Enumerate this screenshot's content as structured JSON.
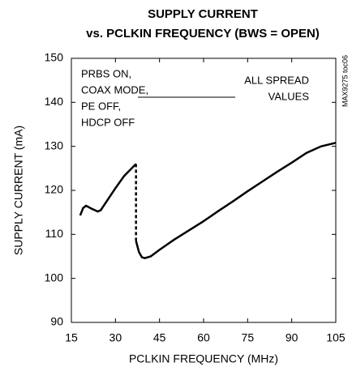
{
  "chart_data": {
    "type": "line",
    "title": [
      "SUPPLY CURRENT",
      "vs. PCLKIN FREQUENCY (BWS = OPEN)"
    ],
    "xlabel": "PCLKIN FREQUENCY (MHz)",
    "ylabel": "SUPPLY CURRENT (mA)",
    "side_note": "MAX9275 toc06",
    "annotations": {
      "left": [
        "PRBS ON,",
        "COAX MODE,",
        "PE OFF,",
        "HDCP OFF"
      ],
      "right": [
        "ALL SPREAD",
        "VALUES"
      ]
    },
    "xlim": [
      15,
      105
    ],
    "xticks": [
      15,
      30,
      45,
      60,
      75,
      90,
      105
    ],
    "ylim": [
      90,
      150
    ],
    "yticks": [
      90,
      100,
      110,
      120,
      130,
      140,
      150
    ],
    "color": "#000000",
    "series": [
      {
        "x": [
          18,
          19,
          20,
          22,
          24,
          25,
          27,
          30,
          33,
          37
        ],
        "values": [
          114.3,
          116,
          116.5,
          115.8,
          115.2,
          115.5,
          117.5,
          120.5,
          123.3,
          126
        ]
      },
      {
        "x": [
          37,
          37
        ],
        "values": [
          126,
          108.5
        ],
        "dashed": true
      },
      {
        "x": [
          37,
          38,
          39,
          40,
          42,
          45,
          50,
          55,
          60,
          65,
          70,
          75,
          80,
          85,
          90,
          95,
          100,
          105
        ],
        "values": [
          108.5,
          106,
          104.8,
          104.6,
          105,
          106.5,
          108.8,
          110.9,
          113,
          115.3,
          117.5,
          119.8,
          122,
          124.2,
          126.3,
          128.5,
          130,
          130.8
        ]
      }
    ]
  }
}
